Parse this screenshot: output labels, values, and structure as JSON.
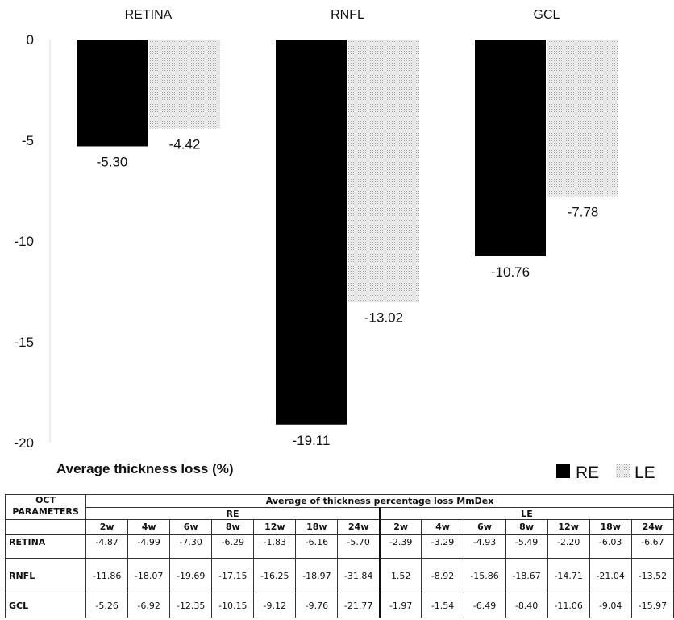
{
  "chart_data": {
    "type": "bar",
    "categories": [
      "RETINA",
      "RNFL",
      "GCL"
    ],
    "series": [
      {
        "name": "RE",
        "values": [
          -5.3,
          -19.11,
          -10.76
        ],
        "color": "#000000",
        "pattern": "solid"
      },
      {
        "name": "LE",
        "values": [
          -4.42,
          -13.02,
          -7.78
        ],
        "color": "#dcdcdc",
        "pattern": "dotted"
      }
    ],
    "data_labels": {
      "RE": [
        "-5.30",
        "-19.11",
        "-10.76"
      ],
      "LE": [
        "-4.42",
        "-13.02",
        "-7.78"
      ]
    },
    "ylim": [
      -20,
      0
    ],
    "yticks": [
      0,
      -5,
      -10,
      -15,
      -20
    ],
    "ytick_labels": [
      "0",
      "-5",
      "-10",
      "-15",
      "-20"
    ],
    "xlabel": "Average thickness loss (%)",
    "legend": {
      "placement": "bottom-right",
      "entries": [
        "RE",
        "LE"
      ]
    },
    "grid": false
  },
  "table": {
    "param_header": "OCT PARAMETERS",
    "group_header": "Average of thickness percentage loss MmDex",
    "eye_groups": [
      "RE",
      "LE"
    ],
    "weeks": [
      "2w",
      "4w",
      "6w",
      "8w",
      "12w",
      "18w",
      "24w"
    ],
    "rows": [
      {
        "label": "RETINA",
        "re": [
          "-4.87",
          "-4.99",
          "-7.30",
          "-6.29",
          "-1.83",
          "-6.16",
          "-5.70"
        ],
        "le": [
          "-2.39",
          "-3.29",
          "-4.93",
          "-5.49",
          "-2.20",
          "-6.03",
          "-6.67"
        ]
      },
      {
        "label": "RNFL",
        "re": [
          "-11.86",
          "-18.07",
          "-19.69",
          "-17.15",
          "-16.25",
          "-18.97",
          "-31.84"
        ],
        "le": [
          "1.52",
          "-8.92",
          "-15.86",
          "-18.67",
          "-14.71",
          "-21.04",
          "-13.52"
        ]
      },
      {
        "label": "GCL",
        "re": [
          "-5.26",
          "-6.92",
          "-12.35",
          "-10.15",
          "-9.12",
          "-9.76",
          "-21.77"
        ],
        "le": [
          "-1.97",
          "-1.54",
          "-6.49",
          "-8.40",
          "-11.06",
          "-9.04",
          "-15.97"
        ]
      }
    ]
  }
}
